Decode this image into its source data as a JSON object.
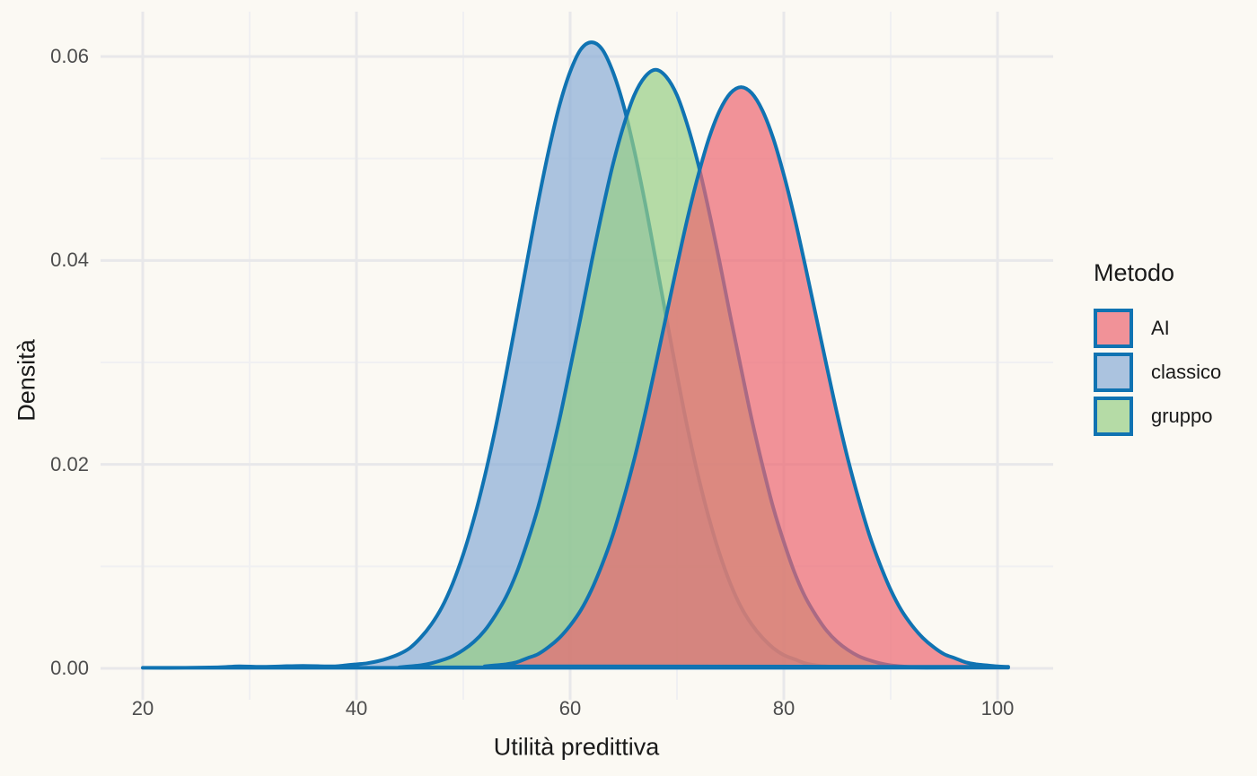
{
  "chart_data": {
    "type": "area",
    "subtype": "density",
    "title": "",
    "xlabel": "Utilità predittiva",
    "ylabel": "Densità",
    "xlim": [
      16,
      105.3
    ],
    "ylim": [
      -0.003,
      0.0644
    ],
    "grid": true,
    "x_axis": {
      "major": [
        20,
        40,
        60,
        80,
        100
      ],
      "labels": [
        "20",
        "40",
        "60",
        "80",
        "100"
      ],
      "minor": [
        30,
        50,
        70,
        90
      ]
    },
    "y_axis": {
      "major": [
        0,
        0.02,
        0.04,
        0.06
      ],
      "labels": [
        "0.00",
        "0.02",
        "0.04",
        "0.06"
      ],
      "minor": [
        0.01,
        0.03,
        0.05
      ]
    },
    "legend": {
      "title": "Metodo",
      "position": "right",
      "entries": [
        "AI",
        "classico",
        "gruppo"
      ]
    },
    "draw_order": [
      1,
      2,
      0
    ],
    "colors": {
      "background": "#FBF9F3",
      "grid_major": "#E8E8EA",
      "grid_minor": "#F0F0F2",
      "tick_label": "#4D4D4D",
      "axis_title": "#1A1A1A",
      "curve_stroke": "#1073B2"
    },
    "series": [
      {
        "name": "AI",
        "stroke": "#1073B2",
        "fill_rgba": "rgba(236,103,113,0.7)",
        "peak": {
          "x": 76,
          "density": 0.057
        },
        "points": [
          [
            52,
            0.0002
          ],
          [
            53,
            0.0003
          ],
          [
            54,
            0.0004
          ],
          [
            55,
            0.0006
          ],
          [
            56,
            0.001
          ],
          [
            57,
            0.0014
          ],
          [
            58,
            0.0021
          ],
          [
            59,
            0.003
          ],
          [
            60,
            0.0042
          ],
          [
            61,
            0.0057
          ],
          [
            62,
            0.0077
          ],
          [
            63,
            0.0102
          ],
          [
            64,
            0.0131
          ],
          [
            65,
            0.0166
          ],
          [
            66,
            0.0205
          ],
          [
            67,
            0.0249
          ],
          [
            68,
            0.0297
          ],
          [
            69,
            0.0346
          ],
          [
            70,
            0.0395
          ],
          [
            71,
            0.0442
          ],
          [
            72,
            0.0484
          ],
          [
            73,
            0.052
          ],
          [
            74,
            0.0547
          ],
          [
            75,
            0.0564
          ],
          [
            76,
            0.057
          ],
          [
            77,
            0.0564
          ],
          [
            78,
            0.0547
          ],
          [
            79,
            0.052
          ],
          [
            80,
            0.0484
          ],
          [
            81,
            0.0442
          ],
          [
            82,
            0.0395
          ],
          [
            83,
            0.0346
          ],
          [
            84,
            0.0297
          ],
          [
            85,
            0.0249
          ],
          [
            86,
            0.0205
          ],
          [
            87,
            0.0166
          ],
          [
            88,
            0.0131
          ],
          [
            89,
            0.0102
          ],
          [
            90,
            0.0077
          ],
          [
            91,
            0.0057
          ],
          [
            92,
            0.0042
          ],
          [
            93,
            0.003
          ],
          [
            94,
            0.0021
          ],
          [
            95,
            0.0014
          ],
          [
            96,
            0.001
          ],
          [
            97,
            0.0006
          ],
          [
            98,
            0.0004
          ],
          [
            99,
            0.0003
          ],
          [
            100,
            0.0002
          ],
          [
            101,
            0.00015
          ]
        ]
      },
      {
        "name": "classico",
        "stroke": "#1073B2",
        "fill_rgba": "rgba(137,173,214,0.7)",
        "peak": {
          "x": 62,
          "density": 0.0614
        },
        "points": [
          [
            20,
            5e-05
          ],
          [
            24,
            5e-05
          ],
          [
            27,
            0.0001
          ],
          [
            29,
            0.0002
          ],
          [
            31,
            0.00015
          ],
          [
            33,
            0.0002
          ],
          [
            35,
            0.00025
          ],
          [
            37,
            0.0002
          ],
          [
            38,
            0.0002
          ],
          [
            39,
            0.0003
          ],
          [
            40,
            0.0004
          ],
          [
            41,
            0.0005
          ],
          [
            42,
            0.0007
          ],
          [
            43,
            0.001
          ],
          [
            44,
            0.0014
          ],
          [
            45,
            0.002
          ],
          [
            46,
            0.003
          ],
          [
            47,
            0.0043
          ],
          [
            48,
            0.006
          ],
          [
            49,
            0.0083
          ],
          [
            50,
            0.0112
          ],
          [
            51,
            0.0147
          ],
          [
            52,
            0.0188
          ],
          [
            53,
            0.0235
          ],
          [
            54,
            0.0288
          ],
          [
            55,
            0.0344
          ],
          [
            56,
            0.0401
          ],
          [
            57,
            0.0457
          ],
          [
            58,
            0.0508
          ],
          [
            59,
            0.0552
          ],
          [
            60,
            0.0585
          ],
          [
            61,
            0.0607
          ],
          [
            62,
            0.0614
          ],
          [
            63,
            0.0607
          ],
          [
            64,
            0.0585
          ],
          [
            65,
            0.0552
          ],
          [
            66,
            0.0508
          ],
          [
            67,
            0.0457
          ],
          [
            68,
            0.0401
          ],
          [
            69,
            0.0344
          ],
          [
            70,
            0.0288
          ],
          [
            71,
            0.0235
          ],
          [
            72,
            0.0188
          ],
          [
            73,
            0.0147
          ],
          [
            74,
            0.0112
          ],
          [
            75,
            0.0083
          ],
          [
            76,
            0.006
          ],
          [
            77,
            0.0043
          ],
          [
            78,
            0.003
          ],
          [
            79,
            0.002
          ],
          [
            80,
            0.0013
          ],
          [
            81,
            0.0009
          ],
          [
            82,
            0.0005
          ],
          [
            83,
            0.0003
          ],
          [
            84,
            0.0002
          ],
          [
            85,
            0.00015
          ],
          [
            86,
            0.0001
          ],
          [
            88,
            8e-05
          ],
          [
            92,
            6e-05
          ],
          [
            96,
            6e-05
          ],
          [
            101,
            6e-05
          ]
        ]
      },
      {
        "name": "gruppo",
        "stroke": "#1073B2",
        "fill_rgba": "rgba(151,206,133,0.7)",
        "peak": {
          "x": 68,
          "density": 0.0587
        },
        "points": [
          [
            44,
            0.0001
          ],
          [
            45,
            0.0002
          ],
          [
            46,
            0.0003
          ],
          [
            47,
            0.0005
          ],
          [
            48,
            0.0008
          ],
          [
            49,
            0.0012
          ],
          [
            50,
            0.0018
          ],
          [
            51,
            0.0026
          ],
          [
            52,
            0.0037
          ],
          [
            53,
            0.0052
          ],
          [
            54,
            0.007
          ],
          [
            55,
            0.0094
          ],
          [
            56,
            0.0124
          ],
          [
            57,
            0.0158
          ],
          [
            58,
            0.0199
          ],
          [
            59,
            0.0244
          ],
          [
            60,
            0.0294
          ],
          [
            61,
            0.0345
          ],
          [
            62,
            0.0398
          ],
          [
            63,
            0.0448
          ],
          [
            64,
            0.0494
          ],
          [
            65,
            0.0532
          ],
          [
            66,
            0.0562
          ],
          [
            67,
            0.058
          ],
          [
            68,
            0.0587
          ],
          [
            69,
            0.058
          ],
          [
            70,
            0.0562
          ],
          [
            71,
            0.0532
          ],
          [
            72,
            0.0494
          ],
          [
            73,
            0.0448
          ],
          [
            74,
            0.0398
          ],
          [
            75,
            0.0345
          ],
          [
            76,
            0.0294
          ],
          [
            77,
            0.0244
          ],
          [
            78,
            0.0199
          ],
          [
            79,
            0.0158
          ],
          [
            80,
            0.0124
          ],
          [
            81,
            0.0094
          ],
          [
            82,
            0.007
          ],
          [
            83,
            0.0052
          ],
          [
            84,
            0.0037
          ],
          [
            85,
            0.0026
          ],
          [
            86,
            0.0018
          ],
          [
            87,
            0.0012
          ],
          [
            88,
            0.0008
          ],
          [
            89,
            0.0005
          ],
          [
            90,
            0.0003
          ],
          [
            91,
            0.0002
          ],
          [
            92,
            0.0001
          ]
        ]
      }
    ]
  }
}
